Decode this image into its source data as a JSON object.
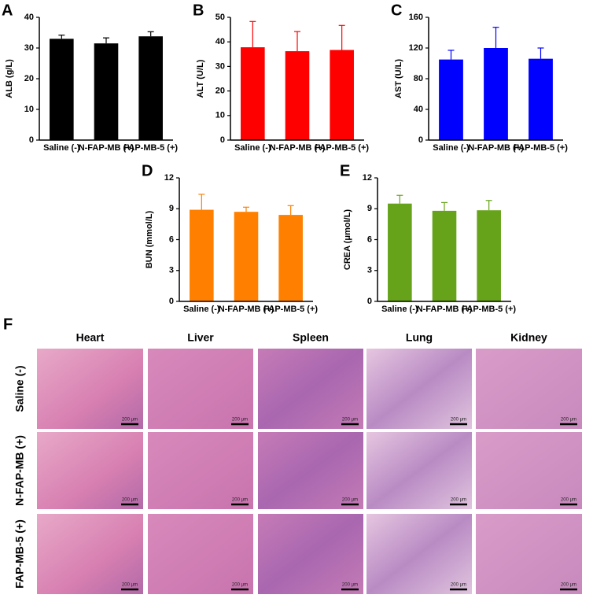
{
  "chart_data": [
    {
      "type": "bar",
      "label": "A",
      "ylabel": "ALB (g/L)",
      "categories": [
        "Saline (-)",
        "N-FAP-MB (+)",
        "FAP-MB-5 (+)"
      ],
      "values": [
        33,
        31.5,
        33.8
      ],
      "errors": [
        1.2,
        1.8,
        1.5
      ],
      "color": "#000000",
      "ylim": [
        0,
        40
      ],
      "yticks": [
        0,
        10,
        20,
        30,
        40
      ]
    },
    {
      "type": "bar",
      "label": "B",
      "ylabel": "ALT (U/L)",
      "categories": [
        "Saline (-)",
        "N-FAP-MB (+)",
        "FAP-MB-5 (+)"
      ],
      "values": [
        37.8,
        36.2,
        36.7
      ],
      "errors": [
        10.5,
        8,
        10
      ],
      "color": "#ff0000",
      "ylim": [
        0,
        50
      ],
      "yticks": [
        0,
        10,
        20,
        30,
        40,
        50
      ]
    },
    {
      "type": "bar",
      "label": "C",
      "ylabel": "AST (U/L)",
      "categories": [
        "Saline (-)",
        "N-FAP-MB (+)",
        "FAP-MB-5 (+)"
      ],
      "values": [
        105,
        120,
        106
      ],
      "errors": [
        12,
        27,
        14
      ],
      "color": "#0000ff",
      "ylim": [
        0,
        160
      ],
      "yticks": [
        0,
        40,
        80,
        120,
        160
      ]
    },
    {
      "type": "bar",
      "label": "D",
      "ylabel": "BUN (mmol/L)",
      "categories": [
        "Saline (-)",
        "N-FAP-MB (+)",
        "FAP-MB-5 (+)"
      ],
      "values": [
        8.9,
        8.7,
        8.4
      ],
      "errors": [
        1.5,
        0.45,
        0.9
      ],
      "color": "#ff8000",
      "ylim": [
        0,
        12
      ],
      "yticks": [
        0,
        3,
        6,
        9,
        12
      ]
    },
    {
      "type": "bar",
      "label": "E",
      "ylabel": "CREA (μmol/L)",
      "categories": [
        "Saline (-)",
        "N-FAP-MB (+)",
        "FAP-MB-5 (+)"
      ],
      "values": [
        9.5,
        8.8,
        8.85
      ],
      "errors": [
        0.8,
        0.8,
        0.95
      ],
      "color": "#66a31a",
      "ylim": [
        0,
        12
      ],
      "yticks": [
        0,
        3,
        6,
        9,
        12
      ]
    }
  ],
  "histology": {
    "label": "F",
    "columns": [
      "Heart",
      "Liver",
      "Spleen",
      "Lung",
      "Kidney"
    ],
    "rows": [
      "Saline (-)",
      "N-FAP-MB (+)",
      "FAP-MB-5 (+)"
    ],
    "scale_bar": "200 μm"
  }
}
